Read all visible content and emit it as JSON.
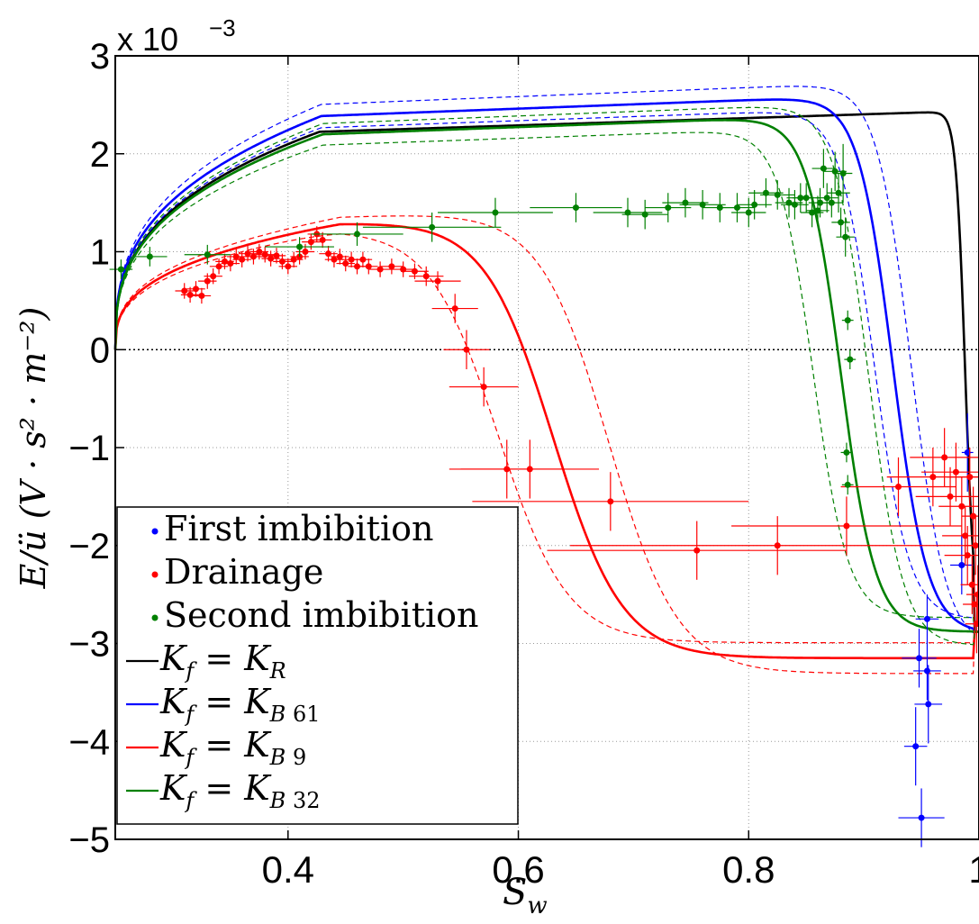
{
  "chart_data": {
    "type": "scatter",
    "title": "",
    "xlabel": "S",
    "xlabel_sub": "w",
    "ylabel": "E/ü (V · s² · m⁻²)",
    "y_multiplier_label": "x 10",
    "y_multiplier_exp": "−3",
    "xlim": [
      0.25,
      1.0
    ],
    "ylim": [
      -5,
      3
    ],
    "x_ticks": [
      {
        "v": 0.4,
        "label": "0.4"
      },
      {
        "v": 0.6,
        "label": "0.6"
      },
      {
        "v": 0.8,
        "label": "0.8"
      },
      {
        "v": 1.0,
        "label": "1"
      }
    ],
    "y_ticks": [
      {
        "v": -5,
        "label": "−5"
      },
      {
        "v": -4,
        "label": "−4"
      },
      {
        "v": -3,
        "label": "−3"
      },
      {
        "v": -2,
        "label": "−2"
      },
      {
        "v": -1,
        "label": "−1"
      },
      {
        "v": 0,
        "label": "0"
      },
      {
        "v": 1,
        "label": "1"
      },
      {
        "v": 2,
        "label": "2"
      },
      {
        "v": 3,
        "label": "3"
      }
    ],
    "grid": true,
    "legend_position": "lower-left",
    "legend": [
      {
        "kind": "dot",
        "color": "#0000ff",
        "label": "First imbibition"
      },
      {
        "kind": "dot",
        "color": "#ff0000",
        "label": "Drainage"
      },
      {
        "kind": "dot",
        "color": "#008000",
        "label": "Second imbibition"
      },
      {
        "kind": "line",
        "color": "#000000",
        "lhs": "K",
        "lhs_sub": "f",
        "rhs": "K",
        "rhs_sub": "R",
        "rhs_sub2": ""
      },
      {
        "kind": "line",
        "color": "#0000ff",
        "lhs": "K",
        "lhs_sub": "f",
        "rhs": "K",
        "rhs_sub": "B",
        "rhs_sub2": "61"
      },
      {
        "kind": "line",
        "color": "#ff0000",
        "lhs": "K",
        "lhs_sub": "f",
        "rhs": "K",
        "rhs_sub": "B",
        "rhs_sub2": "9"
      },
      {
        "kind": "line",
        "color": "#008000",
        "lhs": "K",
        "lhs_sub": "f",
        "rhs": "K",
        "rhs_sub": "B",
        "rhs_sub2": "32"
      }
    ],
    "models": [
      {
        "name": "K_f = K_R",
        "color": "#000000",
        "peak": 2.32,
        "drop_x": 0.988,
        "drop_w": 0.004,
        "neg": -2.88,
        "end_x": 1.0,
        "band": 0
      },
      {
        "name": "K_f = K_B 61",
        "color": "#0000ff",
        "peak": 2.48,
        "drop_x": 0.925,
        "drop_w": 0.015,
        "neg": -2.9,
        "end_x": 1.0,
        "band": 0.01
      },
      {
        "name": "K_f = K_B 9",
        "color": "#ff0000",
        "peak": 1.3,
        "drop_x": 0.63,
        "drop_w": 0.03,
        "neg": -3.15,
        "end_x": 1.0,
        "band": 0.03
      },
      {
        "name": "K_f = K_B 32",
        "color": "#008000",
        "peak": 2.28,
        "drop_x": 0.88,
        "drop_w": 0.015,
        "neg": -2.88,
        "end_x": 1.0,
        "band": 0.015
      }
    ],
    "series": [
      {
        "name": "First imbibition",
        "color": "#0000ff",
        "points": [
          [
            0.955,
            -2.75,
            0.01,
            0.25
          ],
          [
            0.948,
            -3.15,
            0.015,
            0.3
          ],
          [
            0.955,
            -3.28,
            0.012,
            0.3
          ],
          [
            0.956,
            -3.62,
            0.012,
            0.4
          ],
          [
            0.945,
            -4.05,
            0.01,
            0.4
          ],
          [
            0.95,
            -4.78,
            0.02,
            0.3
          ],
          [
            0.985,
            -2.2,
            0.01,
            0.3
          ],
          [
            0.99,
            -1.05,
            0.005,
            0.4
          ]
        ]
      },
      {
        "name": "Drainage",
        "color": "#ff0000",
        "points": [
          [
            0.31,
            0.6,
            0.008,
            0.08
          ],
          [
            0.315,
            0.56,
            0.008,
            0.08
          ],
          [
            0.32,
            0.62,
            0.008,
            0.08
          ],
          [
            0.325,
            0.55,
            0.008,
            0.08
          ],
          [
            0.33,
            0.7,
            0.008,
            0.08
          ],
          [
            0.335,
            0.75,
            0.008,
            0.08
          ],
          [
            0.34,
            0.85,
            0.008,
            0.08
          ],
          [
            0.345,
            0.9,
            0.008,
            0.08
          ],
          [
            0.35,
            0.88,
            0.008,
            0.08
          ],
          [
            0.355,
            0.95,
            0.008,
            0.08
          ],
          [
            0.36,
            0.92,
            0.008,
            0.08
          ],
          [
            0.365,
            0.98,
            0.008,
            0.08
          ],
          [
            0.37,
            0.95,
            0.008,
            0.08
          ],
          [
            0.375,
            1.0,
            0.008,
            0.08
          ],
          [
            0.38,
            0.97,
            0.008,
            0.08
          ],
          [
            0.385,
            0.93,
            0.008,
            0.08
          ],
          [
            0.39,
            0.96,
            0.008,
            0.08
          ],
          [
            0.395,
            0.9,
            0.008,
            0.08
          ],
          [
            0.4,
            0.85,
            0.008,
            0.08
          ],
          [
            0.405,
            0.92,
            0.008,
            0.08
          ],
          [
            0.41,
            0.95,
            0.008,
            0.08
          ],
          [
            0.415,
            1.0,
            0.008,
            0.08
          ],
          [
            0.42,
            1.1,
            0.008,
            0.08
          ],
          [
            0.425,
            1.18,
            0.008,
            0.08
          ],
          [
            0.43,
            1.12,
            0.008,
            0.08
          ],
          [
            0.435,
            0.98,
            0.008,
            0.08
          ],
          [
            0.44,
            0.92,
            0.008,
            0.08
          ],
          [
            0.445,
            0.95,
            0.008,
            0.08
          ],
          [
            0.45,
            0.88,
            0.008,
            0.08
          ],
          [
            0.455,
            0.92,
            0.008,
            0.08
          ],
          [
            0.46,
            0.85,
            0.008,
            0.08
          ],
          [
            0.465,
            0.92,
            0.008,
            0.08
          ],
          [
            0.47,
            0.85,
            0.008,
            0.08
          ],
          [
            0.48,
            0.82,
            0.01,
            0.08
          ],
          [
            0.49,
            0.85,
            0.01,
            0.08
          ],
          [
            0.5,
            0.82,
            0.01,
            0.08
          ],
          [
            0.51,
            0.8,
            0.012,
            0.08
          ],
          [
            0.52,
            0.75,
            0.015,
            0.1
          ],
          [
            0.53,
            0.7,
            0.02,
            0.1
          ],
          [
            0.545,
            0.42,
            0.02,
            0.15
          ],
          [
            0.555,
            0.0,
            0.02,
            0.2
          ],
          [
            0.57,
            -0.38,
            0.03,
            0.2
          ],
          [
            0.59,
            -1.22,
            0.05,
            0.3
          ],
          [
            0.61,
            -1.22,
            0.06,
            0.3
          ],
          [
            0.68,
            -1.55,
            0.12,
            0.3
          ],
          [
            0.755,
            -2.05,
            0.13,
            0.3
          ],
          [
            0.825,
            -2.0,
            0.18,
            0.3
          ],
          [
            0.885,
            -1.8,
            0.1,
            0.3
          ],
          [
            0.93,
            -1.4,
            0.05,
            0.3
          ],
          [
            0.96,
            -1.3,
            0.04,
            0.3
          ],
          [
            0.97,
            -1.1,
            0.03,
            0.3
          ],
          [
            0.975,
            -1.5,
            0.03,
            0.3
          ],
          [
            0.98,
            -1.25,
            0.03,
            0.3
          ],
          [
            0.985,
            -1.6,
            0.02,
            0.3
          ],
          [
            0.988,
            -1.9,
            0.02,
            0.3
          ],
          [
            0.99,
            -2.1,
            0.02,
            0.3
          ],
          [
            0.992,
            -1.3,
            0.02,
            0.3
          ],
          [
            0.994,
            -2.4,
            0.01,
            0.3
          ],
          [
            0.996,
            -2.6,
            0.01,
            0.3
          ],
          [
            0.998,
            -2.8,
            0.01,
            0.3
          ],
          [
            0.995,
            -1.7,
            0.01,
            0.3
          ],
          [
            0.997,
            -2.0,
            0.01,
            0.3
          ],
          [
            0.999,
            -2.5,
            0.01,
            0.3
          ]
        ]
      },
      {
        "name": "Second imbibition",
        "color": "#008000",
        "points": [
          [
            0.255,
            0.82,
            0.01,
            0.1
          ],
          [
            0.28,
            0.95,
            0.015,
            0.1
          ],
          [
            0.33,
            0.97,
            0.02,
            0.1
          ],
          [
            0.41,
            1.05,
            0.03,
            0.1
          ],
          [
            0.46,
            1.18,
            0.04,
            0.12
          ],
          [
            0.525,
            1.25,
            0.06,
            0.15
          ],
          [
            0.58,
            1.4,
            0.05,
            0.15
          ],
          [
            0.65,
            1.45,
            0.04,
            0.15
          ],
          [
            0.695,
            1.4,
            0.03,
            0.15
          ],
          [
            0.71,
            1.38,
            0.02,
            0.15
          ],
          [
            0.73,
            1.45,
            0.02,
            0.15
          ],
          [
            0.745,
            1.5,
            0.02,
            0.15
          ],
          [
            0.76,
            1.48,
            0.02,
            0.15
          ],
          [
            0.775,
            1.45,
            0.015,
            0.15
          ],
          [
            0.79,
            1.45,
            0.015,
            0.15
          ],
          [
            0.8,
            1.4,
            0.015,
            0.15
          ],
          [
            0.805,
            1.48,
            0.015,
            0.15
          ],
          [
            0.815,
            1.6,
            0.015,
            0.15
          ],
          [
            0.825,
            1.58,
            0.015,
            0.15
          ],
          [
            0.835,
            1.5,
            0.012,
            0.15
          ],
          [
            0.84,
            1.48,
            0.012,
            0.15
          ],
          [
            0.845,
            1.55,
            0.012,
            0.15
          ],
          [
            0.85,
            1.55,
            0.012,
            0.15
          ],
          [
            0.855,
            1.4,
            0.01,
            0.15
          ],
          [
            0.86,
            1.42,
            0.01,
            0.15
          ],
          [
            0.862,
            1.5,
            0.01,
            0.15
          ],
          [
            0.865,
            1.85,
            0.01,
            0.2
          ],
          [
            0.868,
            1.55,
            0.01,
            0.15
          ],
          [
            0.872,
            1.5,
            0.01,
            0.15
          ],
          [
            0.875,
            1.82,
            0.01,
            0.2
          ],
          [
            0.878,
            1.6,
            0.01,
            0.2
          ],
          [
            0.88,
            1.3,
            0.008,
            0.15
          ],
          [
            0.882,
            1.8,
            0.008,
            0.3
          ],
          [
            0.884,
            1.15,
            0.008,
            0.2
          ],
          [
            0.886,
            0.3,
            0.005,
            0.1
          ],
          [
            0.888,
            -0.1,
            0.005,
            0.1
          ],
          [
            0.885,
            -1.05,
            0.005,
            0.1
          ],
          [
            0.886,
            -1.38,
            0.005,
            0.1
          ]
        ]
      }
    ]
  }
}
